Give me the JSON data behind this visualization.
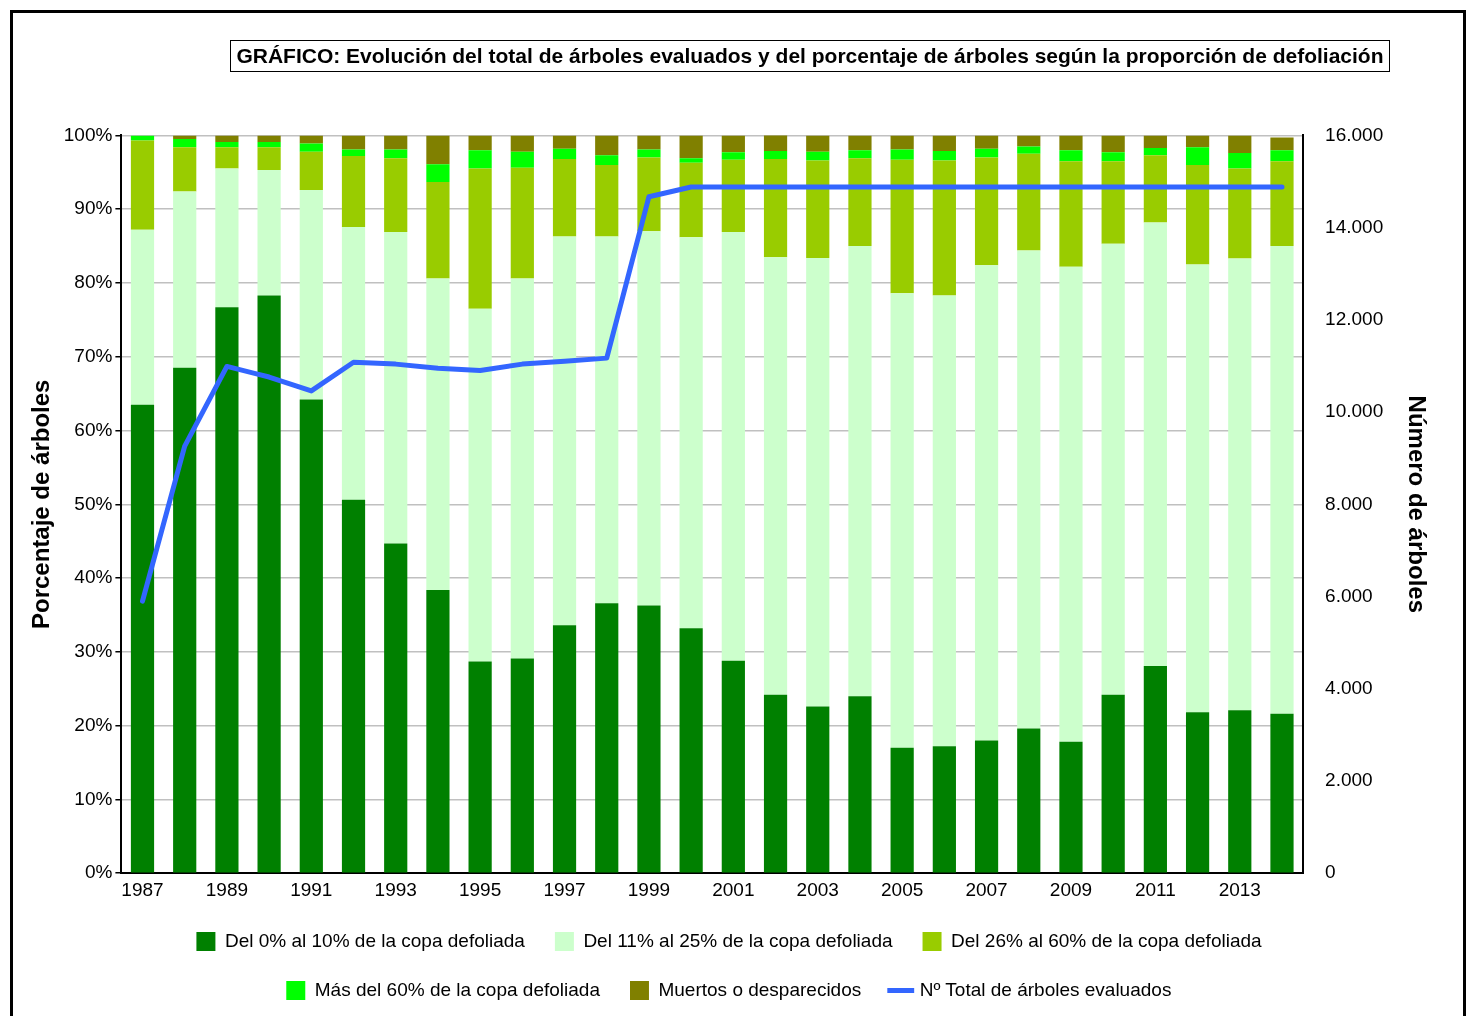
{
  "chart_data": {
    "type": "bar",
    "stacked": true,
    "title": "GRÁFICO: Evolución del total de árboles evaluados y del porcentaje de árboles según la proporción de defoliación",
    "ylabel": "Porcentaje de árboles",
    "y2label": "Número de árboles",
    "categories": [
      "1987",
      null,
      "1989",
      null,
      "1991",
      null,
      "1993",
      null,
      "1995",
      null,
      "1997",
      null,
      "1999",
      null,
      "2001",
      null,
      "2003",
      null,
      "2005",
      null,
      "2007",
      null,
      "2009",
      null,
      "2011",
      null,
      "2013",
      null
    ],
    "series": [
      {
        "name": "Del 0% al 10% de la copa defoliada",
        "color": "#008000",
        "values": [
          63.5,
          68.5,
          76.7,
          78.3,
          64.2,
          50.6,
          44.7,
          38.4,
          28.7,
          29.1,
          33.6,
          36.6,
          36.3,
          33.2,
          28.8,
          24.2,
          22.6,
          24.0,
          17.0,
          17.2,
          18.0,
          19.6,
          17.8,
          24.2,
          28.1,
          21.8,
          22.1,
          21.6
        ]
      },
      {
        "name": "Del 11% al 25% de la copa defoliada",
        "color": "#ccffcc",
        "values": [
          23.7,
          23.9,
          18.8,
          17.0,
          28.4,
          37.0,
          42.2,
          42.2,
          47.8,
          51.5,
          52.7,
          49.7,
          50.7,
          53.0,
          58.1,
          59.3,
          60.8,
          61.0,
          61.6,
          61.1,
          64.4,
          64.8,
          64.4,
          61.1,
          60.1,
          60.7,
          61.2,
          63.4
        ]
      },
      {
        "name": "Del 26% al 60% de la copa defoliada",
        "color": "#99cc00",
        "values": [
          12.1,
          6.0,
          2.9,
          3.1,
          5.2,
          9.6,
          10.0,
          13.1,
          19.0,
          15.0,
          10.5,
          9.7,
          10.0,
          10.1,
          9.8,
          13.3,
          13.2,
          11.9,
          18.1,
          18.3,
          14.6,
          13.1,
          14.3,
          11.2,
          9.1,
          13.5,
          12.2,
          11.5
        ]
      },
      {
        "name": "Más del 60% de la copa defoliada",
        "color": "#00ff00",
        "values": [
          0.7,
          1.1,
          0.7,
          0.7,
          1.1,
          0.9,
          1.2,
          2.4,
          2.5,
          2.2,
          1.4,
          1.3,
          1.1,
          0.6,
          1.0,
          1.1,
          1.2,
          1.1,
          1.4,
          1.3,
          1.2,
          1.0,
          1.5,
          1.2,
          1.0,
          2.4,
          2.1,
          1.5
        ]
      },
      {
        "name": "Muertos o desparecidos",
        "color": "#808000",
        "values": [
          0,
          0.5,
          0.9,
          0.9,
          1.1,
          1.9,
          1.9,
          3.9,
          2.0,
          2.2,
          1.8,
          2.7,
          1.9,
          3.1,
          2.3,
          2.3,
          2.2,
          2.0,
          1.9,
          2.1,
          1.8,
          1.5,
          2.0,
          2.3,
          1.7,
          1.6,
          2.4,
          1.7
        ]
      },
      {
        "name": "Nº Total de árboles evaluados",
        "type": "line",
        "axis": "y2",
        "color": "#3366ff",
        "values": [
          5900,
          9260,
          10990,
          10760,
          10460,
          11080,
          11040,
          10950,
          10900,
          11040,
          11100,
          11170,
          14670,
          14880,
          14880,
          14880,
          14880,
          14880,
          14880,
          14880,
          14880,
          14880,
          14880,
          14880,
          14880,
          14880,
          14880,
          14880
        ]
      }
    ],
    "ylim": [
      0,
      100
    ],
    "yticks": [
      {
        "value": 0,
        "label": "0%"
      },
      {
        "value": 10,
        "label": "10%"
      },
      {
        "value": 20,
        "label": "20%"
      },
      {
        "value": 30,
        "label": "30%"
      },
      {
        "value": 40,
        "label": "40%"
      },
      {
        "value": 50,
        "label": "50%"
      },
      {
        "value": 60,
        "label": "60%"
      },
      {
        "value": 70,
        "label": "70%"
      },
      {
        "value": 80,
        "label": "80%"
      },
      {
        "value": 90,
        "label": "90%"
      },
      {
        "value": 100,
        "label": "100%"
      }
    ],
    "y2lim": [
      0,
      16000
    ],
    "y2ticks": [
      0,
      {
        "value": 2000,
        "label": "2.000"
      },
      {
        "value": 4000,
        "label": "4.000"
      },
      {
        "value": 6000,
        "label": "6.000"
      },
      {
        "value": 8000,
        "label": "8.000"
      },
      {
        "value": 10000,
        "label": "10.000"
      },
      {
        "value": 12000,
        "label": "12.000"
      },
      {
        "value": 14000,
        "label": "14.000"
      },
      {
        "value": 16000,
        "label": "16.000"
      }
    ],
    "grid": "y",
    "legend": "bottom",
    "marker": "none",
    "line_style": "solid"
  }
}
